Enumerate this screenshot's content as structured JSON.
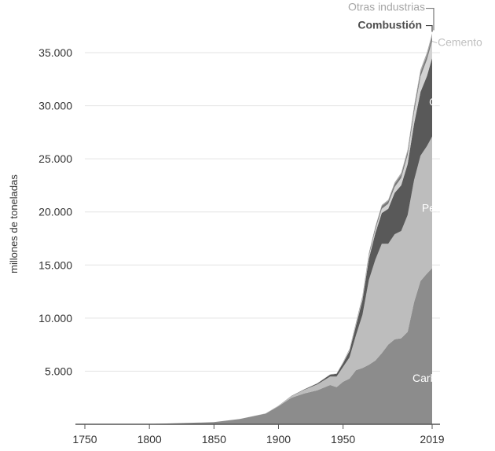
{
  "chart_data": {
    "type": "area",
    "title": "",
    "xlabel": "",
    "ylabel": "millones de toneladas",
    "xlim": [
      1750,
      2019
    ],
    "ylim": [
      0,
      37000
    ],
    "grid": true,
    "x_ticks": [
      "1750",
      "1800",
      "1850",
      "1900",
      "1950",
      "2019"
    ],
    "y_ticks": [
      "5.000",
      "10.000",
      "15.000",
      "20.000",
      "25.000",
      "30.000",
      "35.000"
    ],
    "x": [
      1750,
      1800,
      1850,
      1870,
      1890,
      1900,
      1910,
      1920,
      1930,
      1940,
      1945,
      1950,
      1955,
      1960,
      1965,
      1970,
      1975,
      1980,
      1985,
      1990,
      1995,
      2000,
      2005,
      2010,
      2015,
      2019
    ],
    "series": [
      {
        "name": "Carbón",
        "values": [
          10,
          30,
          200,
          500,
          1000,
          1700,
          2500,
          2900,
          3200,
          3700,
          3500,
          4000,
          4300,
          5100,
          5300,
          5600,
          6000,
          6700,
          7500,
          8000,
          8100,
          8700,
          11500,
          13500,
          14200,
          14700
        ]
      },
      {
        "name": "Petróleo",
        "values": [
          0,
          0,
          0,
          0,
          10,
          50,
          150,
          350,
          550,
          800,
          1000,
          1400,
          2000,
          3300,
          5000,
          8000,
          9500,
          10300,
          9500,
          9900,
          10100,
          11000,
          11500,
          11800,
          12000,
          12400
        ]
      },
      {
        "name": "Gas",
        "values": [
          0,
          0,
          0,
          0,
          5,
          10,
          20,
          40,
          100,
          180,
          250,
          350,
          600,
          900,
          1400,
          2000,
          2500,
          2900,
          3300,
          3900,
          4300,
          4800,
          5300,
          6000,
          6600,
          7400
        ]
      },
      {
        "name": "Cemento",
        "values": [
          0,
          0,
          0,
          0,
          0,
          0,
          10,
          20,
          30,
          40,
          45,
          70,
          110,
          150,
          200,
          280,
          340,
          400,
          460,
          550,
          700,
          850,
          1100,
          1450,
          1550,
          1600
        ]
      },
      {
        "name": "Combustión",
        "values": [
          0,
          0,
          0,
          0,
          0,
          0,
          0,
          0,
          0,
          0,
          0,
          50,
          80,
          120,
          150,
          200,
          220,
          250,
          260,
          280,
          300,
          320,
          350,
          380,
          400,
          410
        ]
      },
      {
        "name": "Otras industrias",
        "values": [
          0,
          0,
          0,
          0,
          0,
          0,
          0,
          0,
          0,
          0,
          0,
          0,
          0,
          20,
          40,
          60,
          80,
          100,
          120,
          150,
          180,
          200,
          230,
          260,
          280,
          300
        ]
      }
    ],
    "colors": [
      "#8c8c8c",
      "#bdbdbd",
      "#595959",
      "#d2d2d2",
      "#7a7a7a",
      "#a8a8a8"
    ],
    "legend_placement": "inline labels on areas / right of chart"
  }
}
